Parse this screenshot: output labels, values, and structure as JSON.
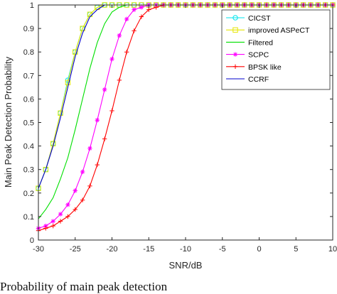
{
  "caption": "Probability of main peak detection",
  "chart_data": {
    "type": "line",
    "xlabel": "SNR/dB",
    "ylabel": "Main Peak Detection Probability",
    "xlim": [
      -30,
      10
    ],
    "ylim": [
      0,
      1
    ],
    "xticks": [
      -30,
      -25,
      -20,
      -15,
      -10,
      -5,
      0,
      5,
      10
    ],
    "yticks": [
      0,
      0.1,
      0.2,
      0.3,
      0.4,
      0.5,
      0.6,
      0.7,
      0.8,
      0.9,
      1
    ],
    "grid": false,
    "legend_position": "top-right",
    "x": [
      -30,
      -29,
      -28,
      -27,
      -26,
      -25,
      -24,
      -23,
      -22,
      -21,
      -20,
      -19,
      -18,
      -17,
      -16,
      -15,
      -14,
      -13,
      -12,
      -11,
      -10,
      -9,
      -8,
      -7,
      -6,
      -5,
      -4,
      -3,
      -2,
      -1,
      0,
      1,
      2,
      3,
      4,
      5,
      6,
      7,
      8,
      9,
      10
    ],
    "series": [
      {
        "name": "CICST",
        "color": "#00e5ee",
        "marker": "circle",
        "x": [
          -30,
          -29,
          -28,
          -27,
          -26,
          -25,
          -24,
          -23,
          -22,
          -21,
          -20,
          -19,
          -18,
          -17,
          -16,
          -15,
          -14,
          -13,
          -12,
          -11,
          -10,
          -9,
          -8,
          -7,
          -6,
          -5,
          -4,
          -3,
          -2,
          -1,
          0,
          1,
          2,
          3,
          4,
          5,
          6,
          7,
          8,
          9,
          10
        ],
        "values": [
          0.22,
          0.3,
          0.41,
          0.54,
          0.68,
          0.8,
          0.9,
          0.96,
          0.99,
          1,
          1,
          1,
          1,
          1,
          1,
          1,
          1,
          1,
          1,
          1,
          1,
          1,
          1,
          1,
          1,
          1,
          1,
          1,
          1,
          1,
          1,
          1,
          1,
          1,
          1,
          1,
          1,
          1,
          1,
          1,
          1
        ]
      },
      {
        "name": "improved ASPeCT",
        "color": "#e5e500",
        "marker": "square",
        "x": [
          -30,
          -29,
          -28,
          -27,
          -26,
          -25,
          -24,
          -23,
          -22,
          -21,
          -20,
          -19,
          -18,
          -17,
          -16,
          -15,
          -14,
          -13,
          -12,
          -11,
          -10,
          -9,
          -8,
          -7,
          -6,
          -5,
          -4,
          -3,
          -2,
          -1,
          0,
          1,
          2,
          3,
          4,
          5,
          6,
          7,
          8,
          9,
          10
        ],
        "values": [
          0.22,
          0.3,
          0.41,
          0.54,
          0.67,
          0.8,
          0.9,
          0.96,
          0.99,
          1,
          1,
          1,
          1,
          1,
          1,
          1,
          1,
          1,
          1,
          1,
          1,
          1,
          1,
          1,
          1,
          1,
          1,
          1,
          1,
          1,
          1,
          1,
          1,
          1,
          1,
          1,
          1,
          1,
          1,
          1,
          1
        ]
      },
      {
        "name": "Filtered",
        "color": "#00e000",
        "marker": "none",
        "x": [
          -30,
          -29,
          -28,
          -27,
          -26,
          -25,
          -24,
          -23,
          -22,
          -21,
          -20,
          -19,
          -18,
          -17,
          -16,
          -15,
          -14,
          -13,
          -12,
          -11,
          -10,
          -5,
          0,
          5,
          10
        ],
        "values": [
          0.09,
          0.13,
          0.18,
          0.26,
          0.35,
          0.47,
          0.6,
          0.73,
          0.84,
          0.92,
          0.97,
          0.99,
          1,
          1,
          1,
          1,
          1,
          1,
          1,
          1,
          1,
          1,
          1,
          1,
          1
        ]
      },
      {
        "name": "SCPC",
        "color": "#ff00ff",
        "marker": "star",
        "x": [
          -30,
          -29,
          -28,
          -27,
          -26,
          -25,
          -24,
          -23,
          -22,
          -21,
          -20,
          -19,
          -18,
          -17,
          -16,
          -15,
          -14,
          -13,
          -12,
          -11,
          -10,
          -9,
          -8,
          -7,
          -6,
          -5,
          -4,
          -3,
          -2,
          -1,
          0,
          1,
          2,
          3,
          4,
          5,
          6,
          7,
          8,
          9,
          10
        ],
        "values": [
          0.05,
          0.06,
          0.08,
          0.11,
          0.15,
          0.21,
          0.29,
          0.39,
          0.51,
          0.64,
          0.77,
          0.87,
          0.94,
          0.98,
          0.99,
          1,
          1,
          1,
          1,
          1,
          1,
          1,
          1,
          1,
          1,
          1,
          1,
          1,
          1,
          1,
          1,
          1,
          1,
          1,
          1,
          1,
          1,
          1,
          1,
          1,
          1
        ]
      },
      {
        "name": "BPSK like",
        "color": "#ff0000",
        "marker": "plus",
        "x": [
          -30,
          -29,
          -28,
          -27,
          -26,
          -25,
          -24,
          -23,
          -22,
          -21,
          -20,
          -19,
          -18,
          -17,
          -16,
          -15,
          -14,
          -13,
          -12,
          -11,
          -10,
          -9,
          -8,
          -7,
          -6,
          -5,
          -4,
          -3,
          -2,
          -1,
          0,
          1,
          2,
          3,
          4,
          5,
          6,
          7,
          8,
          9,
          10
        ],
        "values": [
          0.04,
          0.05,
          0.06,
          0.08,
          0.1,
          0.13,
          0.17,
          0.23,
          0.32,
          0.43,
          0.55,
          0.68,
          0.8,
          0.89,
          0.95,
          0.98,
          0.99,
          1,
          1,
          1,
          1,
          1,
          1,
          1,
          1,
          1,
          1,
          1,
          1,
          1,
          1,
          1,
          1,
          1,
          1,
          1,
          1,
          1,
          1,
          1,
          1
        ]
      },
      {
        "name": "CCRF",
        "color": "#0000cc",
        "marker": "none",
        "x": [
          -30,
          -29,
          -28,
          -27,
          -26,
          -25,
          -24,
          -23,
          -22,
          -21,
          -20,
          -15,
          -10,
          -5,
          0,
          5,
          10
        ],
        "values": [
          0.22,
          0.3,
          0.4,
          0.52,
          0.65,
          0.78,
          0.88,
          0.95,
          0.98,
          1,
          1,
          1,
          1,
          1,
          1,
          1,
          1
        ]
      }
    ]
  }
}
